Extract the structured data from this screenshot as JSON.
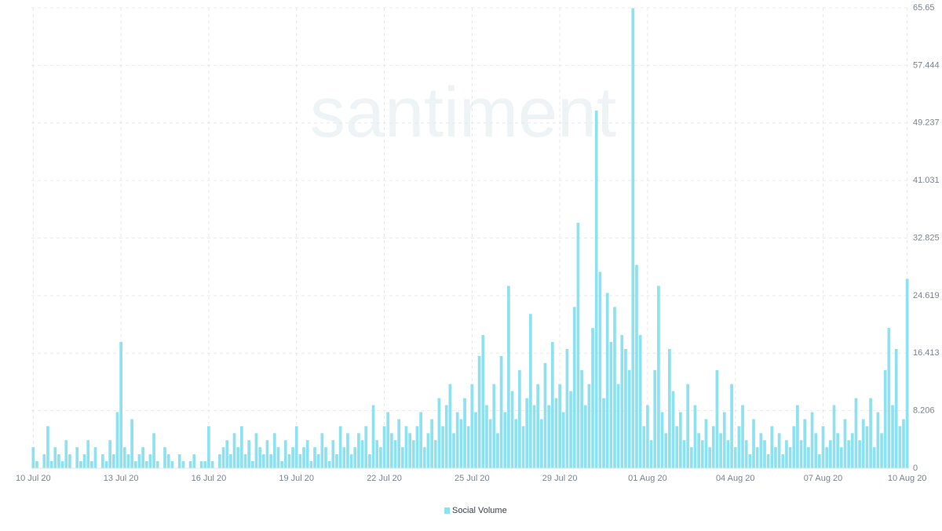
{
  "chart_data": {
    "type": "bar",
    "watermark": "santiment",
    "series": [
      {
        "name": "Social Volume",
        "color": "#8ee1ef",
        "values": [
          3,
          1,
          0,
          2,
          6,
          1,
          3,
          2,
          1,
          4,
          2,
          0,
          3,
          1,
          2,
          4,
          1,
          3,
          0,
          2,
          1,
          4,
          2,
          8,
          18,
          3,
          2,
          7,
          1,
          2,
          3,
          1,
          2,
          5,
          1,
          0,
          3,
          2,
          1,
          0,
          2,
          1,
          0,
          1,
          2,
          0,
          1,
          1,
          6,
          1,
          0,
          2,
          3,
          4,
          2,
          5,
          3,
          6,
          2,
          4,
          1,
          5,
          3,
          2,
          4,
          2,
          5,
          3,
          1,
          4,
          2,
          3,
          6,
          2,
          3,
          4,
          1,
          3,
          2,
          5,
          3,
          1,
          4,
          2,
          6,
          3,
          5,
          2,
          3,
          5,
          4,
          6,
          2,
          9,
          4,
          3,
          6,
          8,
          5,
          4,
          7,
          3,
          6,
          5,
          4,
          6,
          8,
          3,
          5,
          7,
          4,
          10,
          6,
          9,
          12,
          5,
          8,
          7,
          10,
          6,
          12,
          8,
          16,
          19,
          9,
          7,
          12,
          5,
          16,
          8,
          26,
          11,
          7,
          14,
          6,
          10,
          22,
          9,
          12,
          7,
          15,
          9,
          18,
          10,
          12,
          8,
          17,
          11,
          23,
          35,
          14,
          9,
          12,
          20,
          51,
          28,
          10,
          25,
          18,
          23,
          12,
          19,
          17,
          14,
          65.6,
          29,
          19,
          6,
          9,
          4,
          14,
          26,
          8,
          5,
          17,
          11,
          6,
          8,
          4,
          12,
          3,
          9,
          5,
          4,
          7,
          3,
          6,
          14,
          5,
          8,
          4,
          12,
          3,
          6,
          9,
          4,
          2,
          7,
          3,
          5,
          4,
          2,
          6,
          3,
          5,
          2,
          4,
          3,
          6,
          9,
          4,
          7,
          3,
          8,
          5,
          2,
          6,
          3,
          4,
          9,
          5,
          3,
          7,
          4,
          5,
          10,
          4,
          7,
          6,
          10,
          3,
          8,
          5,
          14,
          20,
          9,
          17,
          6,
          7,
          27
        ]
      }
    ],
    "categories": [
      "10 Jul 20",
      null,
      null,
      null,
      null,
      null,
      null,
      null,
      null,
      null,
      null,
      null,
      null,
      null,
      null,
      null,
      null,
      null,
      null,
      null,
      null,
      null,
      null,
      null,
      "13 Jul 20",
      null,
      null,
      null,
      null,
      null,
      null,
      null,
      null,
      null,
      null,
      null,
      null,
      null,
      null,
      null,
      null,
      null,
      null,
      null,
      null,
      null,
      null,
      null,
      "16 Jul 20",
      null,
      null,
      null,
      null,
      null,
      null,
      null,
      null,
      null,
      null,
      null,
      null,
      null,
      null,
      null,
      null,
      null,
      null,
      null,
      null,
      null,
      null,
      null,
      "19 Jul 20",
      null,
      null,
      null,
      null,
      null,
      null,
      null,
      null,
      null,
      null,
      null,
      null,
      null,
      null,
      null,
      null,
      null,
      null,
      null,
      null,
      null,
      null,
      null,
      "22 Jul 20",
      null,
      null,
      null,
      null,
      null,
      null,
      null,
      null,
      null,
      null,
      null,
      null,
      null,
      null,
      null,
      null,
      null,
      null,
      null,
      null,
      null,
      null,
      null,
      "25 Jul 20",
      null,
      null,
      null,
      null,
      null,
      null,
      null,
      null,
      null,
      null,
      null,
      null,
      null,
      null,
      null,
      null,
      null,
      null,
      null,
      null,
      null,
      null,
      null,
      "29 Jul 20",
      null,
      null,
      null,
      null,
      null,
      null,
      null,
      null,
      null,
      null,
      null,
      null,
      null,
      null,
      null,
      null,
      null,
      null,
      null,
      null,
      null,
      null,
      null,
      "01 Aug 20",
      null,
      null,
      null,
      null,
      null,
      null,
      null,
      null,
      null,
      null,
      null,
      null,
      null,
      null,
      null,
      null,
      null,
      null,
      null,
      null,
      null,
      null,
      null,
      "04 Aug 20",
      null,
      null,
      null,
      null,
      null,
      null,
      null,
      null,
      null,
      null,
      null,
      null,
      null,
      null,
      null,
      null,
      null,
      null,
      null,
      null,
      null,
      null,
      null,
      "07 Aug 20",
      null,
      null,
      null,
      null,
      null,
      null,
      null,
      null,
      null,
      null,
      null,
      null,
      null,
      null,
      null,
      null,
      null,
      null,
      null,
      null,
      null,
      null,
      "10 Aug 20"
    ],
    "ylim": [
      0,
      65.65
    ],
    "yticks": [
      0,
      8.206,
      16.413,
      24.619,
      32.825,
      41.031,
      49.237,
      57.444,
      65.65
    ],
    "grid": true
  }
}
